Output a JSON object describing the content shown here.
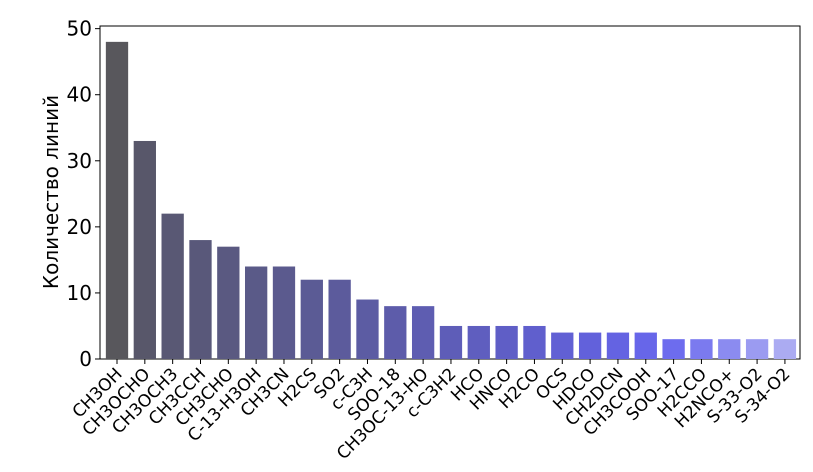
{
  "chart_data": {
    "type": "bar",
    "ylabel": "Количество линий",
    "categories": [
      "CH3OH",
      "CH3OCHO",
      "CH3OCH3",
      "CH3CCH",
      "CH3CHO",
      "C-13-H3OH",
      "CH3CN",
      "H2CS",
      "SO2",
      "c-C3H",
      "SOO-18",
      "CH3OC-13-HO",
      "c-C3H2",
      "HCO",
      "HNCO",
      "H2CO",
      "OCS",
      "HDCO",
      "CH2DCN",
      "CH3COOH",
      "SOO-17",
      "H2CCO",
      "H2NCO+",
      "S-33-O2",
      "S-34-O2"
    ],
    "values": [
      48,
      33,
      22,
      18,
      17,
      14,
      14,
      12,
      12,
      9,
      8,
      8,
      5,
      5,
      5,
      5,
      4,
      4,
      4,
      4,
      3,
      3,
      3,
      3,
      3
    ],
    "colors": [
      "#58575c",
      "#58576a",
      "#595874",
      "#59587a",
      "#5a5981",
      "#5a5a88",
      "#5b5a8e",
      "#5b5b95",
      "#5c5b9c",
      "#5c5ca3",
      "#5d5caa",
      "#5e5db1",
      "#5e5db8",
      "#5f5ebf",
      "#5f5ec6",
      "#605fcd",
      "#6160d4",
      "#6261db",
      "#6463e2",
      "#6766e9",
      "#6d6cee",
      "#7b7aef",
      "#8b8bf0",
      "#9b9bf1",
      "#ababf2"
    ],
    "ylim": [
      0,
      50.4
    ],
    "yticks": [
      0,
      10,
      20,
      30,
      40,
      50
    ],
    "grid": false
  }
}
